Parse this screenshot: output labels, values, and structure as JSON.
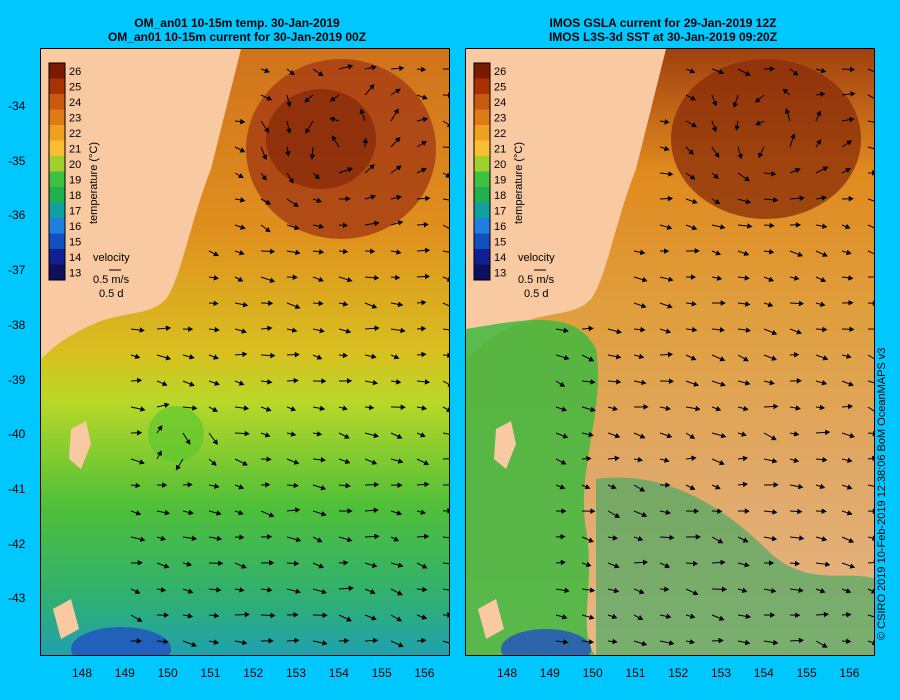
{
  "left_panel": {
    "title_line1": "OM_an01 10-15m temp. 30-Jan-2019",
    "title_line2": "OM_an01 10-15m current for 30-Jan-2019 00Z"
  },
  "right_panel": {
    "title_line1": "IMOS GSLA current for 29-Jan-2019 12Z",
    "title_line2": "IMOS L3S-3d SST at 30-Jan-2019 09:20Z"
  },
  "colorbar": {
    "label": "temperature (°C)",
    "ticks": [
      "26",
      "25",
      "24",
      "23",
      "22",
      "21",
      "20",
      "19",
      "18",
      "17",
      "16",
      "15",
      "14",
      "13"
    ],
    "colors": [
      "#7a1a00",
      "#a83300",
      "#c85a10",
      "#e07a18",
      "#f0a020",
      "#f8c030",
      "#a0d030",
      "#40c040",
      "#20b050",
      "#10a0a0",
      "#2080e0",
      "#1050c0",
      "#102090",
      "#101060"
    ]
  },
  "velocity_legend": {
    "label": "velocity",
    "speed": "0.5 m/s",
    "duration": "0.5 d"
  },
  "axes": {
    "y_labels": [
      "-34",
      "-35",
      "-36",
      "-37",
      "-38",
      "-39",
      "-40",
      "-41",
      "-42",
      "-43"
    ],
    "x_labels": [
      "148",
      "149",
      "150",
      "151",
      "152",
      "153",
      "154",
      "155",
      "156"
    ]
  },
  "credit": "© CSIRO 2019   10-Feb-2019 12:38:06 BoM OceanMAPS v3",
  "colors": {
    "background": "#00c8ff",
    "land": "#f9c9a2"
  }
}
